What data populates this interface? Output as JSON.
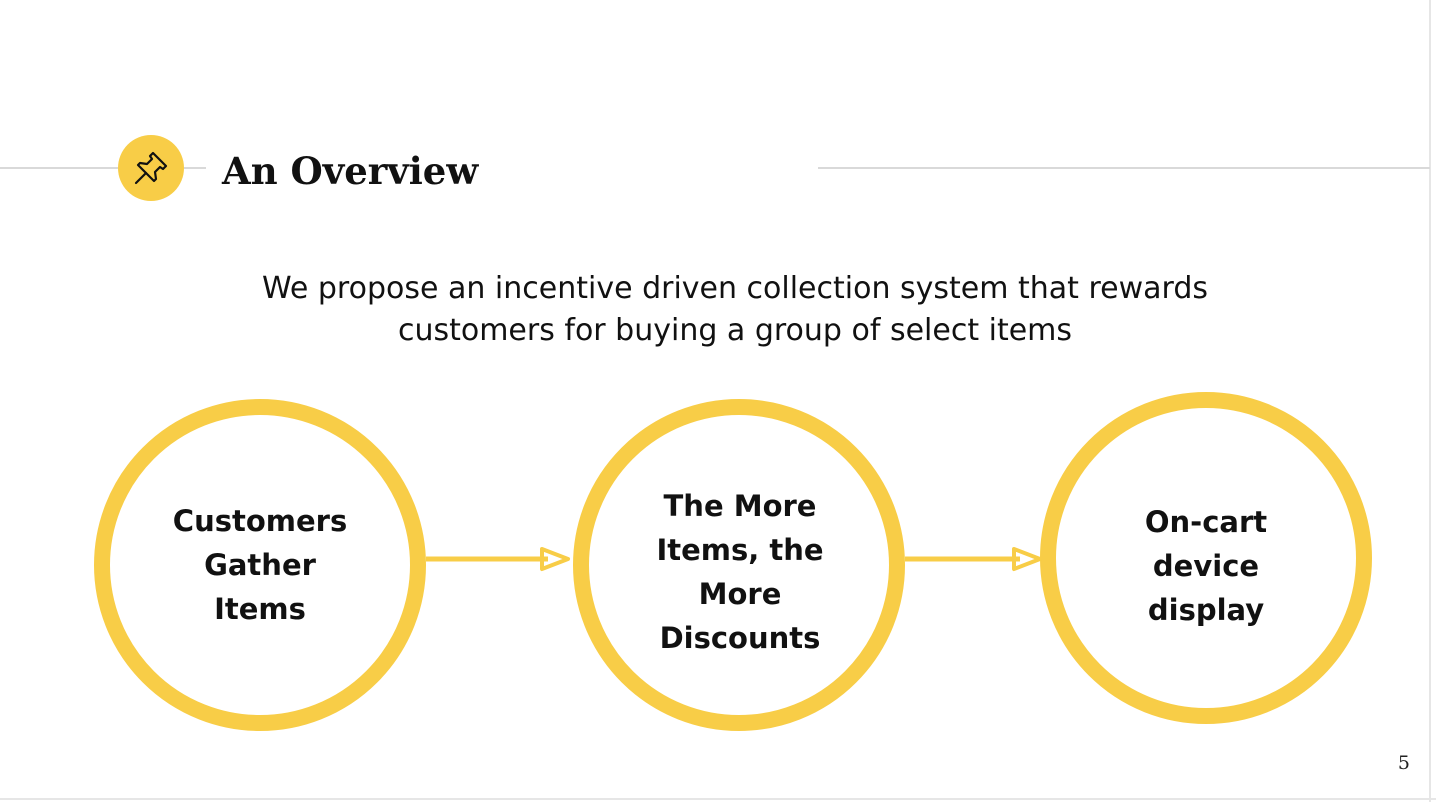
{
  "slide": {
    "title": "An Overview",
    "subtitle": "We propose an incentive driven collection system that rewards customers for buying a group of select items",
    "page_number": "5",
    "icon": "pushpin-icon"
  },
  "colors": {
    "accent": "#f8cd47",
    "text": "#111111",
    "rule": "#d9d9d9"
  },
  "steps": [
    {
      "label": "Customers Gather Items"
    },
    {
      "label": "The More Items, the More Discounts"
    },
    {
      "label": "On-cart device display"
    }
  ]
}
